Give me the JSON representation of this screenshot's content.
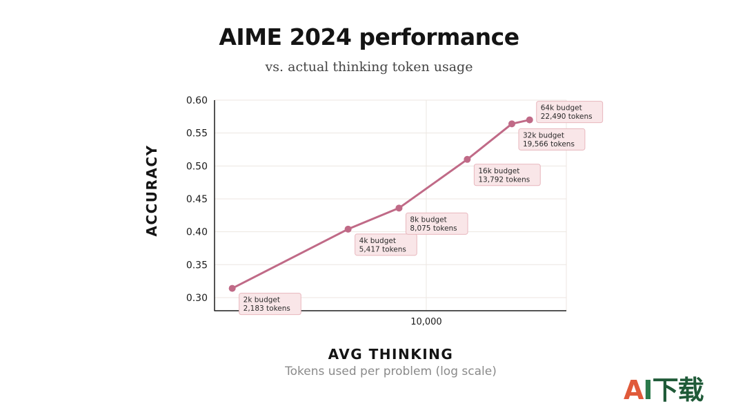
{
  "title": "AIME 2024 performance",
  "subtitle": "vs. actual thinking token usage",
  "colors": {
    "line": "#c06a87",
    "label_bg": "#f9e6e8",
    "label_border": "#e8b6bd",
    "grid": "#ece6e1",
    "axis": "#1a1a1a"
  },
  "chart_data": {
    "type": "line",
    "title": "AIME 2024 performance",
    "subtitle": "vs. actual thinking token usage",
    "xlabel": "AVG THINKING",
    "xlabel_sub": "Tokens used per problem (log scale)",
    "ylabel": "ACCURACY",
    "x_scale": "log",
    "xlim": [
      1900,
      30000
    ],
    "ylim": [
      0.28,
      0.6
    ],
    "x_ticks": [
      10000
    ],
    "x_tick_labels": [
      "10,000"
    ],
    "y_ticks": [
      0.3,
      0.35,
      0.4,
      0.45,
      0.5,
      0.55,
      0.6
    ],
    "y_tick_labels": [
      "0.30",
      "0.35",
      "0.40",
      "0.45",
      "0.50",
      "0.55",
      "0.60"
    ],
    "grid": true,
    "series": [
      {
        "points": [
          {
            "x": 2183,
            "y": 0.314,
            "label": [
              "2k budget",
              "2,183 tokens"
            ]
          },
          {
            "x": 5417,
            "y": 0.404,
            "label": [
              "4k budget",
              "5,417 tokens"
            ]
          },
          {
            "x": 8075,
            "y": 0.436,
            "label": [
              "8k budget",
              "8,075 tokens"
            ]
          },
          {
            "x": 13792,
            "y": 0.51,
            "label": [
              "16k budget",
              "13,792 tokens"
            ]
          },
          {
            "x": 19566,
            "y": 0.564,
            "label": [
              "32k budget",
              "19,566 tokens"
            ]
          },
          {
            "x": 22490,
            "y": 0.57,
            "label": [
              "64k budget",
              "22,490 tokens"
            ]
          }
        ]
      }
    ]
  },
  "watermark": {
    "a": "A",
    "i": "I",
    "cn": "下载"
  }
}
